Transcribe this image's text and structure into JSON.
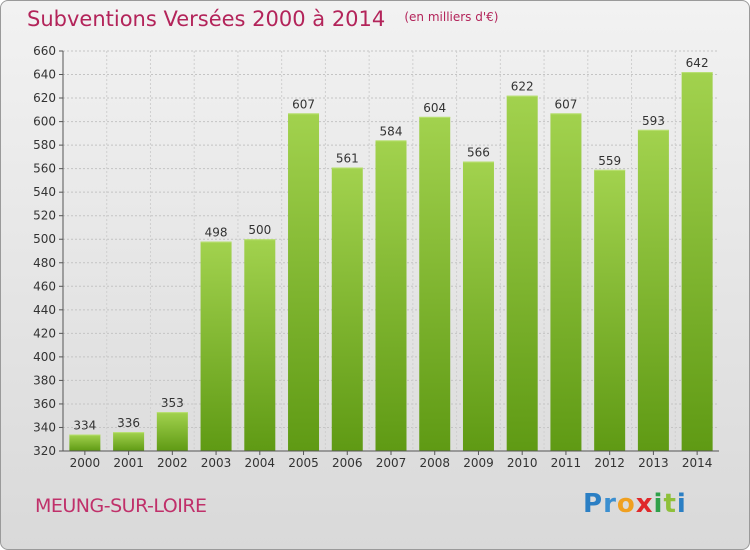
{
  "chart_data": {
    "type": "bar",
    "title": "Subventions Versées 2000 à 2014",
    "subtitle": "(en milliers d'€)",
    "categories": [
      "2000",
      "2001",
      "2002",
      "2003",
      "2004",
      "2005",
      "2006",
      "2007",
      "2008",
      "2009",
      "2010",
      "2011",
      "2012",
      "2013",
      "2014"
    ],
    "values": [
      334,
      336,
      353,
      498,
      500,
      607,
      561,
      584,
      604,
      566,
      622,
      607,
      559,
      593,
      642
    ],
    "ylim": [
      320,
      660
    ],
    "yticks": [
      320,
      340,
      360,
      380,
      400,
      420,
      440,
      460,
      480,
      500,
      520,
      540,
      560,
      580,
      600,
      620,
      640,
      660
    ],
    "grid": true,
    "bar_color": "#7cb82f",
    "legend": "none"
  },
  "footer": {
    "town": "MEUNG-SUR-LOIRE",
    "logo_text": "Proxiti"
  }
}
